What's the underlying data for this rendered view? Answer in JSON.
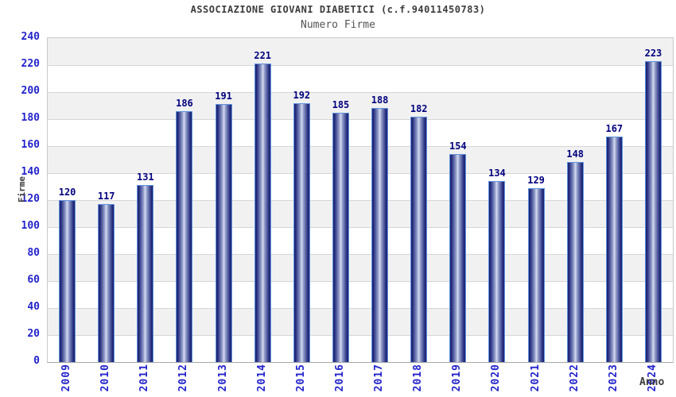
{
  "header": {
    "title": "ASSOCIAZIONE GIOVANI DIABETICI (c.f.94011450783)",
    "subtitle": "Numero Firme"
  },
  "chart_data": {
    "type": "bar",
    "title": "ASSOCIAZIONE GIOVANI DIABETICI (c.f.94011450783)",
    "subtitle": "Numero Firme",
    "categories": [
      "2009",
      "2010",
      "2011",
      "2012",
      "2013",
      "2014",
      "2015",
      "2016",
      "2017",
      "2018",
      "2019",
      "2020",
      "2021",
      "2022",
      "2023",
      "2024"
    ],
    "values": [
      120,
      117,
      131,
      186,
      191,
      221,
      192,
      185,
      188,
      182,
      154,
      134,
      129,
      148,
      167,
      223
    ],
    "xlabel": "Anno",
    "ylabel": "Firme",
    "ylim": [
      0,
      240
    ],
    "ytick_step": 20,
    "yticks": [
      0,
      20,
      40,
      60,
      80,
      100,
      120,
      140,
      160,
      180,
      200,
      220,
      240
    ],
    "grid": "horizontal-bands",
    "legend_position": "none",
    "colors": {
      "bar_edge_dark": "#1c2370",
      "bar_center_light": "#d6dbf0",
      "bar_outline": "#5f93de",
      "tick_label": "#2323cc",
      "value_label": "#00007d",
      "title_text": "#3c3c3c",
      "subtitle_text": "#545454",
      "band_gray": "#f1f1f1",
      "gridline": "#d6d6d6"
    }
  }
}
